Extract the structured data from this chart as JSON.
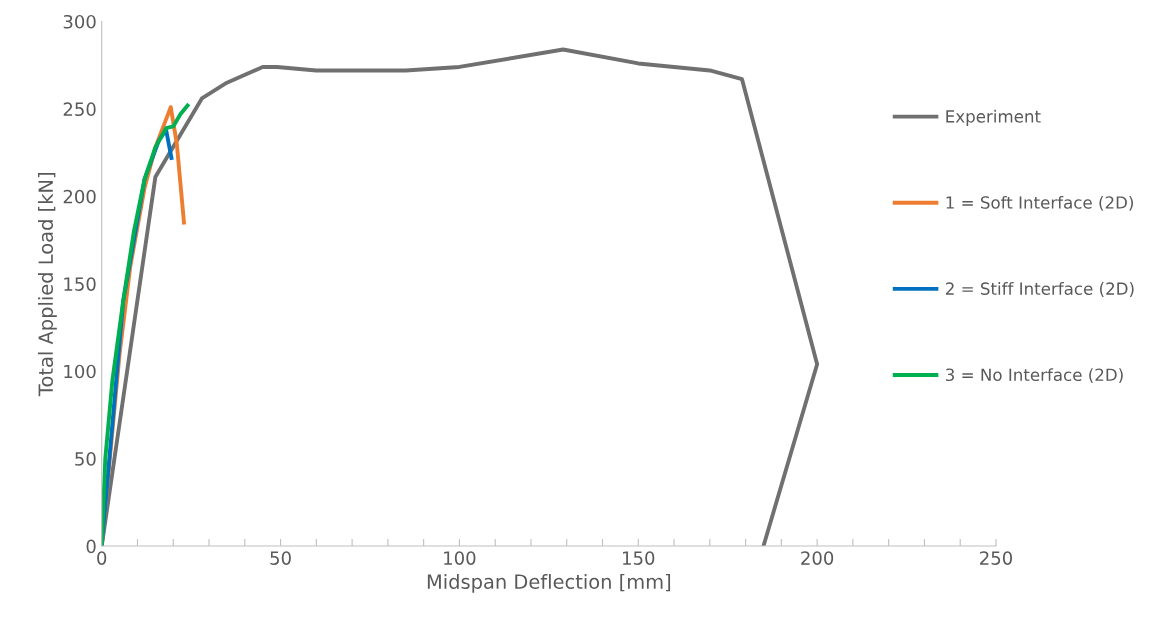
{
  "chart_data": {
    "type": "line",
    "xlabel": "Midspan Deflection [mm]",
    "ylabel": "Total Applied Load [kN]",
    "xlim": [
      0,
      250
    ],
    "ylim": [
      0,
      300
    ],
    "xticks": [
      0,
      {
        "value": 10,
        "label": null
      },
      {
        "value": 20,
        "label": null
      },
      {
        "value": 30,
        "label": null
      },
      {
        "value": 40,
        "label": null
      },
      50,
      {
        "value": 60,
        "label": null
      },
      {
        "value": 70,
        "label": null
      },
      {
        "value": 80,
        "label": null
      },
      {
        "value": 90,
        "label": null
      },
      100,
      {
        "value": 110,
        "label": null
      },
      {
        "value": 120,
        "label": null
      },
      {
        "value": 130,
        "label": null
      },
      {
        "value": 140,
        "label": null
      },
      150,
      {
        "value": 160,
        "label": null
      },
      {
        "value": 170,
        "label": null
      },
      {
        "value": 180,
        "label": null
      },
      {
        "value": 190,
        "label": null
      },
      200,
      {
        "value": 210,
        "label": null
      },
      {
        "value": 220,
        "label": null
      },
      {
        "value": 230,
        "label": null
      },
      {
        "value": 240,
        "label": null
      },
      250
    ],
    "yticks": [
      0,
      50,
      100,
      150,
      200,
      250,
      300
    ],
    "grid": false,
    "legend": "right",
    "marker": "none",
    "line_style": "solid",
    "series": [
      {
        "name": "Experiment",
        "color": "#707070",
        "x": [
          0,
          15,
          28,
          35,
          45,
          49,
          60,
          85,
          100,
          129,
          150,
          170,
          179,
          200,
          185
        ],
        "values": [
          0,
          211,
          256,
          265,
          274,
          274,
          272,
          272,
          274,
          284,
          276,
          272,
          267,
          104,
          0
        ]
      },
      {
        "name": "1 = Soft Interface (2D)",
        "color": "#ed7d31",
        "x": [
          0,
          5,
          8,
          12,
          15,
          19.3,
          21,
          23
        ],
        "values": [
          0,
          110,
          160,
          205,
          228,
          251,
          230,
          185
        ]
      },
      {
        "name": "2 = Stiff Interface (2D)",
        "color": "#0070c0",
        "x": [
          0,
          6,
          12,
          16,
          18,
          19.5
        ],
        "values": [
          0,
          140,
          210,
          232,
          238,
          222
        ]
      },
      {
        "name": "3 = No Interface (2D)",
        "color": "#00b050",
        "x": [
          0,
          1,
          3,
          6,
          9,
          12,
          15,
          18,
          20,
          22,
          24
        ],
        "values": [
          0,
          50,
          95,
          140,
          180,
          210,
          228,
          239,
          240,
          247,
          252
        ]
      }
    ]
  }
}
